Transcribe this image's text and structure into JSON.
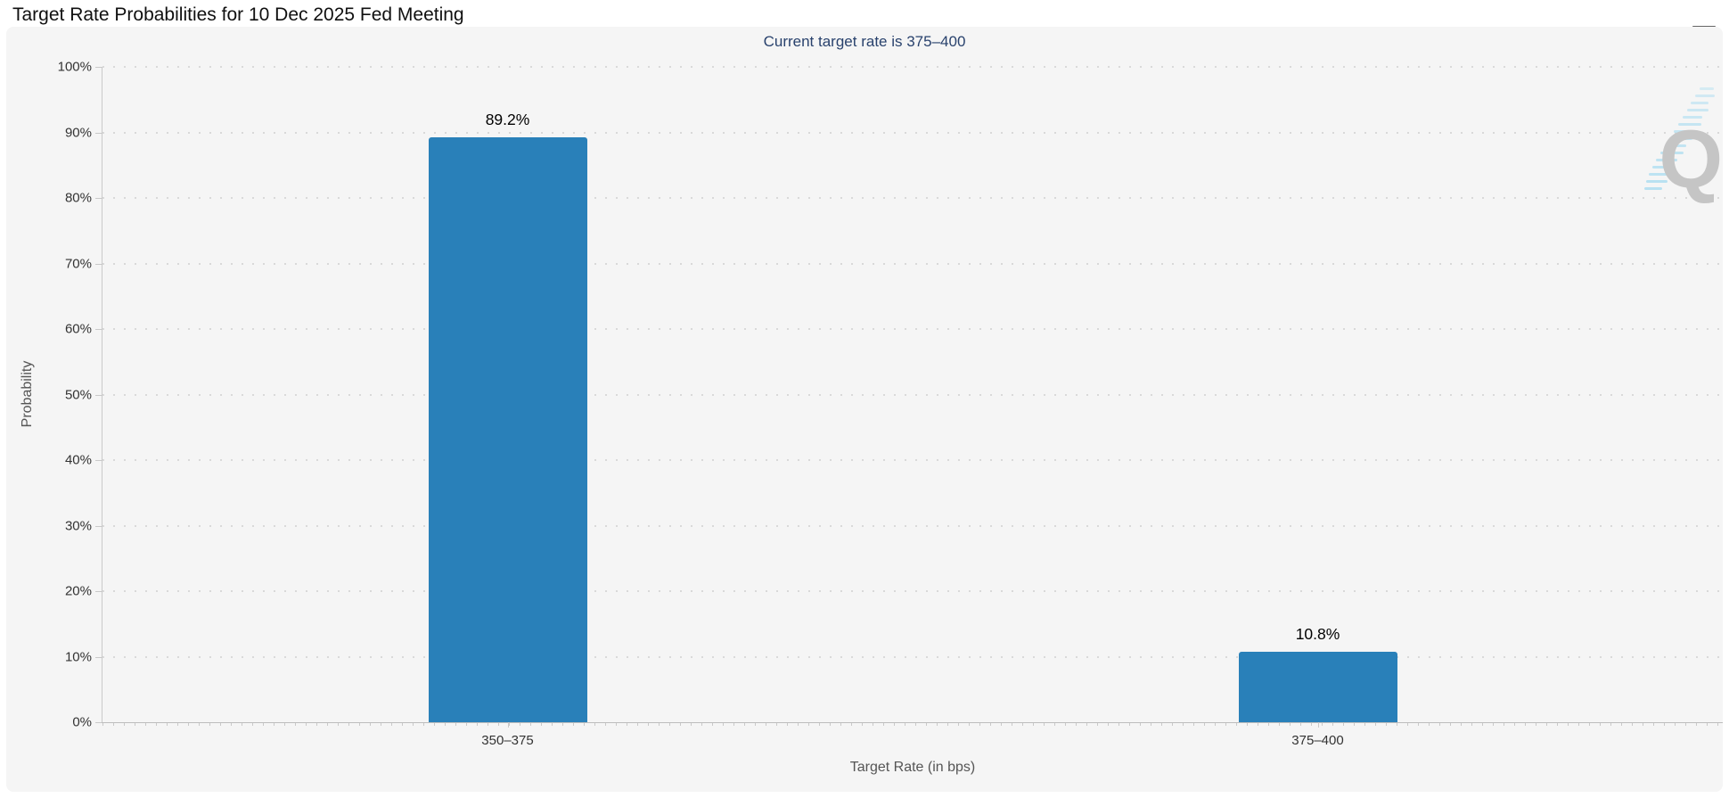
{
  "header": {
    "menu_icon": "hamburger-icon"
  },
  "watermark": {
    "letter": "Q"
  },
  "colors": {
    "bar": "#2980b9",
    "subtitle": "#29426d",
    "panel_background": "#f5f5f5",
    "grid": "#d9d9d9",
    "tick_text": "#333333",
    "axis_title_text": "#555555"
  },
  "chart_data": {
    "type": "bar",
    "title": "Target Rate Probabilities for 10 Dec 2025 Fed Meeting",
    "subtitle": "Current target rate is 375–400",
    "categories": [
      "350–375",
      "375–400"
    ],
    "values": [
      89.2,
      10.8
    ],
    "value_labels": [
      "89.2%",
      "10.8%"
    ],
    "xlabel": "Target Rate (in bps)",
    "ylabel": "Probability",
    "ylim": [
      0,
      100
    ],
    "y_tick_step": 10,
    "y_tick_suffix": "%",
    "grid": "horizontal-dotted",
    "legend": "none",
    "bar_color": "#2980b9"
  }
}
